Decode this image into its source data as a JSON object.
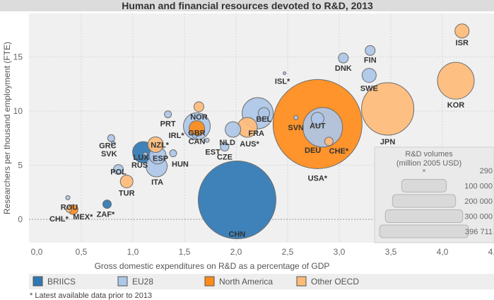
{
  "chart_data": {
    "type": "scatter",
    "title": "Human and financial resources devoted to R&D, 2013",
    "xlabel": "Gross domestic expenditures on  R&D as a percentage of GDP",
    "ylabel": "Researchers per thousand employment (FTE)",
    "xlim": [
      0,
      4.5
    ],
    "ylim": [
      -2.2,
      19
    ],
    "xticks": [
      "0,0",
      "0,5",
      "1,0",
      "1,5",
      "2,0",
      "2,5",
      "3,0",
      "3,5",
      "4,0",
      "4,5"
    ],
    "yticks": [
      "0",
      "5",
      "10",
      "15"
    ],
    "grid": true,
    "categories": [
      {
        "name": "BRIICS",
        "color": "#2f78b4"
      },
      {
        "name": "EU28",
        "color": "#aec7e8"
      },
      {
        "name": "North America",
        "color": "#ff8c1a"
      },
      {
        "name": "Other OECD",
        "color": "#ffbb78"
      }
    ],
    "points": [
      {
        "label": "USA*",
        "x": 2.79,
        "y": 8.8,
        "volume": 396711,
        "cat": 2
      },
      {
        "label": "CHN",
        "x": 2.01,
        "y": 1.8,
        "volume": 302500,
        "cat": 0
      },
      {
        "label": "JPN",
        "x": 3.47,
        "y": 10.2,
        "volume": 136900,
        "cat": 3
      },
      {
        "label": "DEU",
        "x": 2.84,
        "y": 8.5,
        "volume": 78400,
        "cat": 1
      },
      {
        "label": "KOR",
        "x": 4.13,
        "y": 12.8,
        "volume": 67600,
        "cat": 3
      },
      {
        "label": "FRA",
        "x": 2.21,
        "y": 9.8,
        "volume": 48400,
        "cat": 1
      },
      {
        "label": "GBR",
        "x": 1.62,
        "y": 8.6,
        "volume": 36100,
        "cat": 1
      },
      {
        "label": "RUS",
        "x": 1.1,
        "y": 6.2,
        "volume": 22500,
        "cat": 0
      },
      {
        "label": "ITA",
        "x": 1.23,
        "y": 4.9,
        "volume": 22500,
        "cat": 1
      },
      {
        "label": "AUS*",
        "x": 2.11,
        "y": 8.5,
        "volume": 19600,
        "cat": 3
      },
      {
        "label": "ESP",
        "x": 1.24,
        "y": 5.9,
        "volume": 14400,
        "cat": 1
      },
      {
        "label": "CAN",
        "x": 1.62,
        "y": 8.4,
        "volume": 12100,
        "cat": 2
      },
      {
        "label": "NLD",
        "x": 1.97,
        "y": 8.3,
        "volume": 12100,
        "cat": 1
      },
      {
        "label": "NZL*",
        "x": 1.22,
        "y": 6.9,
        "volume": 12100,
        "cat": 3
      },
      {
        "label": "SWE",
        "x": 3.29,
        "y": 13.3,
        "volume": 10000,
        "cat": 1
      },
      {
        "label": "ISR",
        "x": 4.19,
        "y": 17.4,
        "volume": 10000,
        "cat": 3
      },
      {
        "label": "AUT",
        "x": 2.79,
        "y": 9.3,
        "volume": 8100,
        "cat": 1
      },
      {
        "label": "TUR",
        "x": 0.94,
        "y": 3.5,
        "volume": 8100,
        "cat": 3
      },
      {
        "label": "BEL",
        "x": 2.27,
        "y": 9.8,
        "volume": 6400,
        "cat": 1
      },
      {
        "label": "NOR",
        "x": 1.64,
        "y": 10.4,
        "volume": 4900,
        "cat": 3
      },
      {
        "label": "DNK",
        "x": 3.04,
        "y": 14.9,
        "volume": 4900,
        "cat": 1
      },
      {
        "label": "FIN",
        "x": 3.3,
        "y": 15.6,
        "volume": 4900,
        "cat": 1
      },
      {
        "label": "POL",
        "x": 0.86,
        "y": 4.6,
        "volume": 4900,
        "cat": 1
      },
      {
        "label": "MEX*",
        "x": 0.42,
        "y": 0.9,
        "volume": 4900,
        "cat": 2
      },
      {
        "label": "CZE",
        "x": 1.89,
        "y": 6.7,
        "volume": 3600,
        "cat": 1
      },
      {
        "label": "CHE*",
        "x": 2.9,
        "y": 7.2,
        "volume": 3600,
        "cat": 3
      },
      {
        "label": "ZAF*",
        "x": 0.75,
        "y": 1.4,
        "volume": 3600,
        "cat": 0
      },
      {
        "label": "PRT",
        "x": 1.34,
        "y": 9.7,
        "volume": 2500,
        "cat": 1
      },
      {
        "label": "GRC",
        "x": 0.79,
        "y": 7.5,
        "volume": 2500,
        "cat": 1
      },
      {
        "label": "HUN",
        "x": 1.39,
        "y": 6.1,
        "volume": 2500,
        "cat": 1
      },
      {
        "label": "CHL*",
        "x": 0.38,
        "y": 0.9,
        "volume": 1600,
        "cat": 3
      },
      {
        "label": "IRL*",
        "x": 1.6,
        "y": 7.7,
        "volume": 900,
        "cat": 1
      },
      {
        "label": "EST",
        "x": 1.72,
        "y": 7.3,
        "volume": 900,
        "cat": 1
      },
      {
        "label": "SVN",
        "x": 2.58,
        "y": 9.4,
        "volume": 900,
        "cat": 1
      },
      {
        "label": "LUX",
        "x": 1.12,
        "y": 6.0,
        "volume": 900,
        "cat": 1
      },
      {
        "label": "SVK",
        "x": 0.81,
        "y": 7.0,
        "volume": 900,
        "cat": 1
      },
      {
        "label": "ROU",
        "x": 0.37,
        "y": 2.0,
        "volume": 900,
        "cat": 1
      },
      {
        "label": "ISL*",
        "x": 2.47,
        "y": 13.5,
        "volume": 400,
        "cat": 1
      }
    ],
    "size_legend": {
      "title": "R&D volumes",
      "subtitle": "(million 2005 USD)",
      "entries": [
        {
          "label": "290",
          "volume": 290
        },
        {
          "label": "100 000",
          "volume": 100000
        },
        {
          "label": "200 000",
          "volume": 200000
        },
        {
          "label": "300 000",
          "volume": 300000
        },
        {
          "label": "396 711",
          "volume": 396711
        }
      ]
    },
    "legend_position": "bottom",
    "footnote": "* Latest available data prior to 2013"
  }
}
